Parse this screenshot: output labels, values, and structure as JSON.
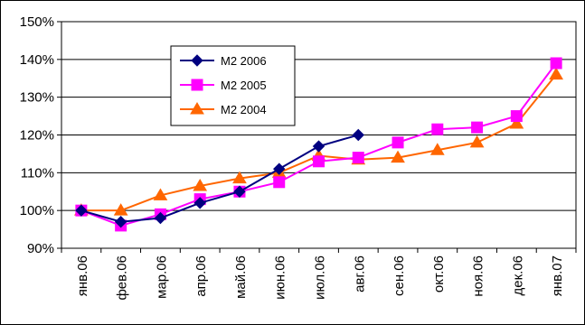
{
  "chart_data": {
    "type": "line",
    "categories": [
      "янв.06",
      "фев.06",
      "мар.06",
      "апр.06",
      "май.06",
      "июн.06",
      "июл.06",
      "авг.06",
      "сен.06",
      "окт.06",
      "ноя.06",
      "дек.06",
      "янв.07"
    ],
    "ylim": [
      0.9,
      1.5
    ],
    "yticks": [
      0.9,
      1.0,
      1.1,
      1.2,
      1.3,
      1.4,
      1.5
    ],
    "ytick_labels": [
      "90%",
      "100%",
      "110%",
      "120%",
      "130%",
      "140%",
      "150%"
    ],
    "grid": "horizontal",
    "legend_position": "top-left",
    "series": [
      {
        "name": "M2 2006",
        "color": "#000080",
        "marker": "diamond",
        "values": [
          1.0,
          0.97,
          0.98,
          1.02,
          1.05,
          1.11,
          1.17,
          1.2,
          null,
          null,
          null,
          null,
          null
        ]
      },
      {
        "name": "M2 2005",
        "color": "#ff00ff",
        "marker": "square",
        "values": [
          1.0,
          0.96,
          0.99,
          1.03,
          1.05,
          1.075,
          1.13,
          1.14,
          1.18,
          1.215,
          1.22,
          1.25,
          1.39
        ]
      },
      {
        "name": "M2 2004",
        "color": "#ff6600",
        "marker": "triangle",
        "values": [
          1.0,
          1.0,
          1.04,
          1.065,
          1.085,
          1.1,
          1.145,
          1.135,
          1.14,
          1.16,
          1.18,
          1.23,
          1.36
        ]
      }
    ]
  }
}
